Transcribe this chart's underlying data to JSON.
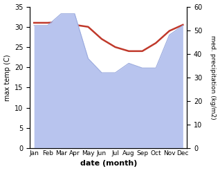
{
  "months": [
    "Jan",
    "Feb",
    "Mar",
    "Apr",
    "May",
    "Jun",
    "Jul",
    "Aug",
    "Sep",
    "Oct",
    "Nov",
    "Dec"
  ],
  "temperature": [
    31.0,
    31.0,
    31.2,
    30.5,
    30.0,
    27.0,
    25.0,
    24.0,
    24.0,
    26.0,
    29.0,
    30.5
  ],
  "precipitation": [
    52,
    52,
    57,
    57,
    38,
    32,
    32,
    36,
    34,
    34,
    48,
    52
  ],
  "temp_color": "#c0392b",
  "precip_fill_color": "#b8c4ee",
  "precip_edge_color": "#9aaade",
  "left_ylim": [
    0,
    35
  ],
  "right_ylim": [
    0,
    60
  ],
  "left_yticks": [
    0,
    5,
    10,
    15,
    20,
    25,
    30,
    35
  ],
  "right_yticks": [
    0,
    10,
    20,
    30,
    40,
    50,
    60
  ],
  "xlabel": "date (month)",
  "ylabel_left": "max temp (C)",
  "ylabel_right": "med. precipitation (kg/m2)"
}
